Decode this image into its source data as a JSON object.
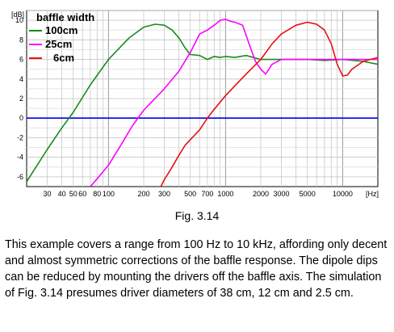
{
  "chart_data": {
    "type": "line",
    "title": "baffle width",
    "xlabel": "",
    "ylabel": "",
    "x_scale": "log",
    "xlim": [
      20,
      20000
    ],
    "ylim": [
      -7,
      11
    ],
    "x_unit": "[Hz]",
    "y_unit": "[dB]",
    "x_ticks": [
      30,
      40,
      50,
      60,
      80,
      100,
      200,
      300,
      500,
      700,
      1000,
      2000,
      3000,
      5000,
      10000
    ],
    "x_tick_labels": [
      "30",
      "40",
      "50",
      "60",
      "80",
      "100",
      "200",
      "300",
      "500",
      "700",
      "1000",
      "2000",
      "3000",
      "5000",
      "10000"
    ],
    "y_ticks": [
      10,
      8,
      6,
      4,
      2,
      0,
      -2,
      -4,
      -6
    ],
    "y_tick_labels": [
      "10",
      "8",
      "6",
      "4",
      "2",
      "0",
      "-2",
      "-4",
      "-6"
    ],
    "grid": true,
    "legend_position": "top-left",
    "series": [
      {
        "name": "100cm",
        "color": "#1a8a1a",
        "x": [
          20,
          30,
          40,
          50,
          70,
          100,
          150,
          200,
          250,
          300,
          350,
          400,
          450,
          500,
          600,
          700,
          800,
          900,
          1000,
          1200,
          1500,
          2000,
          3000,
          5000,
          7000,
          10000,
          15000,
          20000
        ],
        "y": [
          -6.5,
          -3.2,
          -1.0,
          0.6,
          3.4,
          6.0,
          8.2,
          9.3,
          9.6,
          9.5,
          9.0,
          8.2,
          7.2,
          6.5,
          6.4,
          6.0,
          6.3,
          6.2,
          6.3,
          6.2,
          6.4,
          6.0,
          6.0,
          6.0,
          5.9,
          6.0,
          5.8,
          5.5
        ]
      },
      {
        "name": "25cm",
        "color": "#ff00ff",
        "x": [
          70,
          80,
          100,
          130,
          160,
          200,
          300,
          400,
          500,
          600,
          700,
          800,
          900,
          1000,
          1100,
          1200,
          1400,
          1600,
          1800,
          2000,
          2200,
          2500,
          3000,
          5000,
          7000,
          10000,
          15000,
          20000
        ],
        "y": [
          -7,
          -6.2,
          -4.8,
          -2.6,
          -0.8,
          0.8,
          3.0,
          4.8,
          6.7,
          8.6,
          9.0,
          9.5,
          10.0,
          10.1,
          9.9,
          9.8,
          9.5,
          7.5,
          5.8,
          5.0,
          4.5,
          5.5,
          6.0,
          6.0,
          6.0,
          6.0,
          6.0,
          6.0
        ]
      },
      {
        "name": "6cm",
        "color": "#e81010",
        "x": [
          280,
          300,
          350,
          400,
          450,
          500,
          600,
          700,
          800,
          1000,
          1200,
          1500,
          2000,
          2500,
          3000,
          4000,
          5000,
          6000,
          7000,
          8000,
          9000,
          10000,
          11000,
          12000,
          15000,
          20000
        ],
        "y": [
          -7,
          -6.3,
          -5.0,
          -3.8,
          -2.8,
          -2.2,
          -1.2,
          0.0,
          0.9,
          2.3,
          3.3,
          4.5,
          6.0,
          7.6,
          8.6,
          9.5,
          9.8,
          9.6,
          9.0,
          7.6,
          5.5,
          4.3,
          4.4,
          5.0,
          5.8,
          6.2
        ]
      }
    ],
    "reference_line": {
      "y": 0,
      "color": "#0000ee"
    }
  },
  "caption": "Fig. 3.14",
  "paragraph": "This example covers a range from 100 Hz to 10 kHz, affording only decent and almost symmetric corrections of the baffle response. The dipole dips can be reduced by mounting the drivers off the baffle axis. The simulation of Fig. 3.14 presumes driver diameters of 38 cm, 12 cm and 2.5 cm."
}
